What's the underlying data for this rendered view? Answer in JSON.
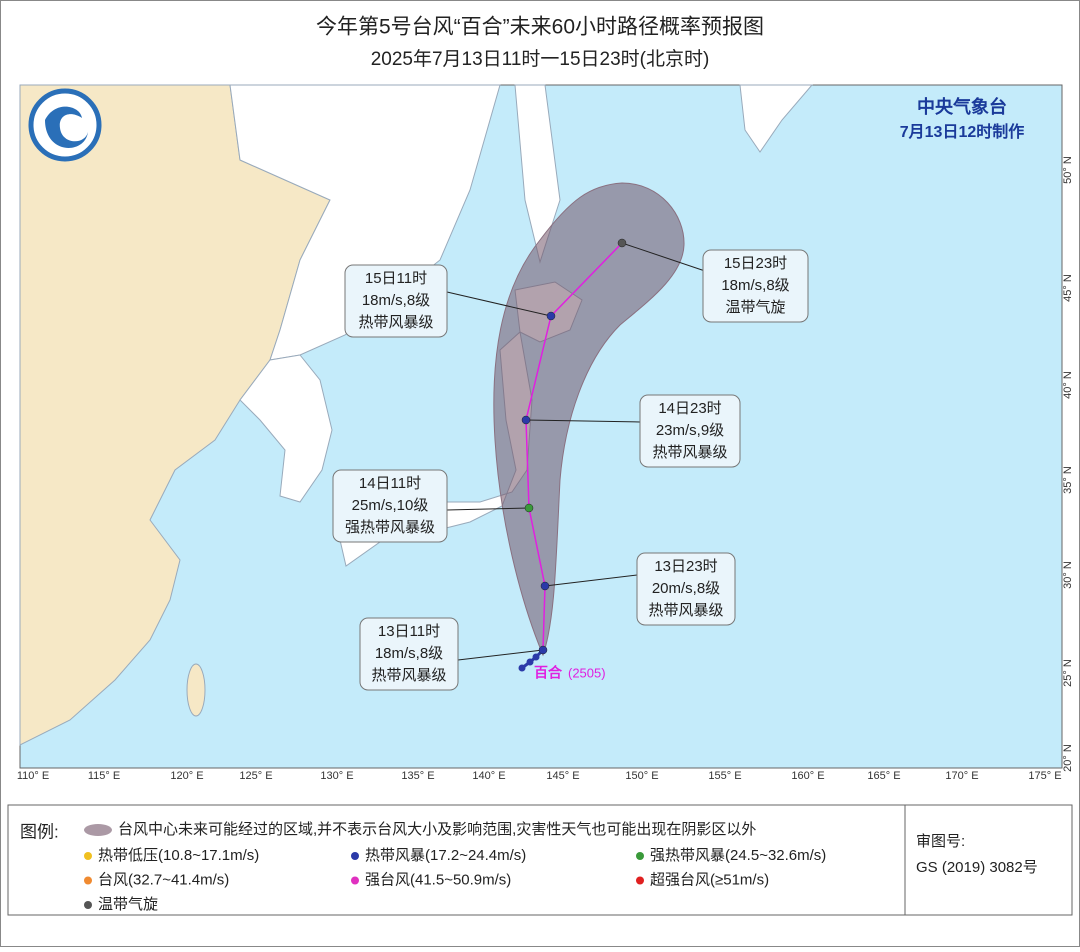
{
  "title": "今年第5号台风“百合”未来60小时路径概率预报图",
  "subtitle": "2025年7月13日11时一15日23时(北京时)",
  "agency": {
    "name": "中央气象台",
    "issued": "7月13日12时制作"
  },
  "map": {
    "lon_labels": [
      "110° E",
      "115° E",
      "120° E",
      "125° E",
      "130° E",
      "135° E",
      "140° E",
      "145° E",
      "150° E",
      "155° E",
      "160° E",
      "165° E",
      "170° E",
      "175° E"
    ],
    "lat_labels": [
      "20° N",
      "25° N",
      "30° N",
      "35° N",
      "40° N",
      "45° N",
      "50° N"
    ]
  },
  "typhoon": {
    "name": "百合",
    "code": "(2505)"
  },
  "forecast_points": [
    {
      "time": "13日11时",
      "wind": "18m/s,8级",
      "level": "热带风暴级",
      "color": "#2b3aa8"
    },
    {
      "time": "13日23时",
      "wind": "20m/s,8级",
      "level": "热带风暴级",
      "color": "#2b3aa8"
    },
    {
      "time": "14日11时",
      "wind": "25m/s,10级",
      "level": "强热带风暴级",
      "color": "#3a9a3a"
    },
    {
      "time": "14日23时",
      "wind": "23m/s,9级",
      "level": "热带风暴级",
      "color": "#2b3aa8"
    },
    {
      "time": "15日11时",
      "wind": "18m/s,8级",
      "level": "热带风暴级",
      "color": "#2b3aa8"
    },
    {
      "time": "15日23时",
      "wind": "18m/s,8级",
      "level": "温带气旋",
      "color": "#555555"
    }
  ],
  "legend": {
    "title": "图例:",
    "cone": "台风中心未来可能经过的区域,并不表示台风大小及影响范围,灾害性天气也可能出现在阴影区以外",
    "items": [
      {
        "label": "热带低压(10.8~17.1m/s)",
        "color": "#f0c020"
      },
      {
        "label": "热带风暴(17.2~24.4m/s)",
        "color": "#2b3aa8"
      },
      {
        "label": "强热带风暴(24.5~32.6m/s)",
        "color": "#3a9a3a"
      },
      {
        "label": "台风(32.7~41.4m/s)",
        "color": "#f08a30"
      },
      {
        "label": "强台风(41.5~50.9m/s)",
        "color": "#e030c0"
      },
      {
        "label": "超强台风(≥51m/s)",
        "color": "#e02020"
      },
      {
        "label": "温带气旋",
        "color": "#555555"
      }
    ]
  },
  "approval": {
    "label": "审图号:",
    "number": "GS (2019) 3082号"
  }
}
